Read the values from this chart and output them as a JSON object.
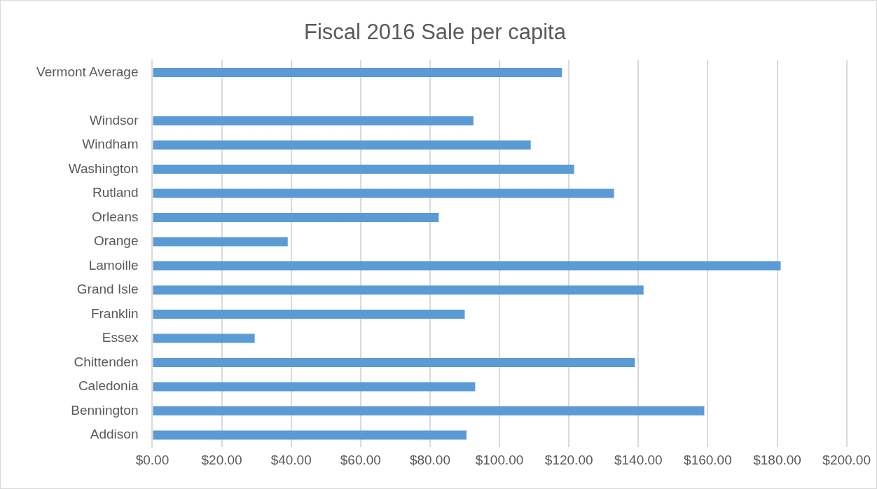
{
  "chart_data": {
    "type": "bar",
    "orientation": "horizontal",
    "title": "Fiscal 2016 Sale per capita",
    "categories": [
      "Vermont Average",
      null,
      "Windsor",
      "Windham",
      "Washington",
      "Rutland",
      "Orleans",
      "Orange",
      "Lamoille",
      "Grand Isle",
      "Franklin",
      "Essex",
      "Chittenden",
      "Caledonia",
      "Bennington",
      "Addison"
    ],
    "values": [
      118,
      null,
      92.5,
      109,
      121.5,
      133,
      82.5,
      39,
      181,
      141.5,
      90,
      29.5,
      139,
      93,
      159,
      90.5
    ],
    "color": "#5b9bd5",
    "xlim": [
      0,
      200
    ],
    "xticks": [
      {
        "value": 0,
        "label": "$0.00"
      },
      {
        "value": 20,
        "label": "$20.00"
      },
      {
        "value": 40,
        "label": "$40.00"
      },
      {
        "value": 60,
        "label": "$60.00"
      },
      {
        "value": 80,
        "label": "$80.00"
      },
      {
        "value": 100,
        "label": "$100.00"
      },
      {
        "value": 120,
        "label": "$120.00"
      },
      {
        "value": 140,
        "label": "$140.00"
      },
      {
        "value": 160,
        "label": "$160.00"
      },
      {
        "value": 180,
        "label": "$180.00"
      },
      {
        "value": 200,
        "label": "$200.00"
      }
    ],
    "grid": "x",
    "legend": false
  }
}
